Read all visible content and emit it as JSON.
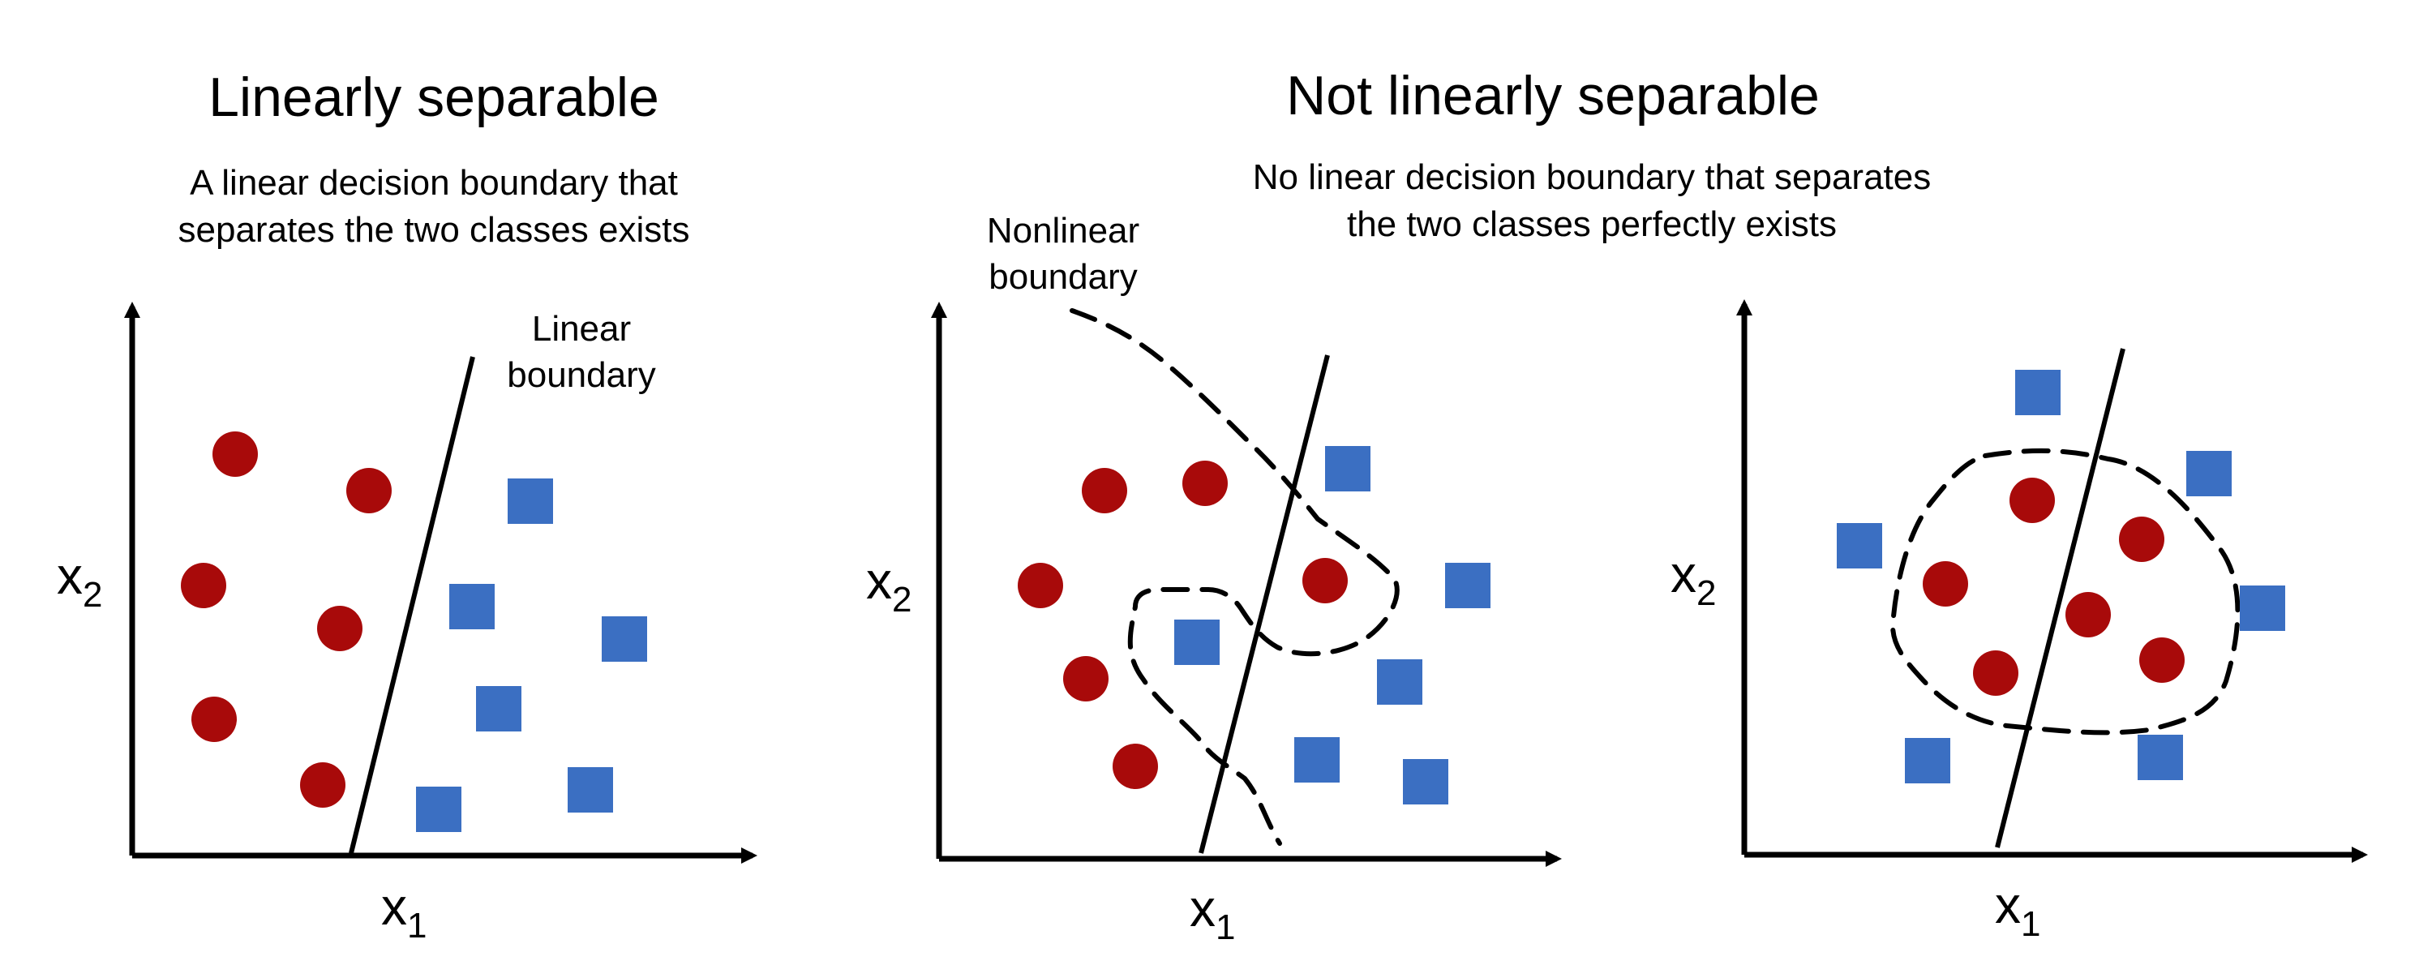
{
  "titles": {
    "left": "Linearly separable",
    "right": "Not linearly separable"
  },
  "subtitles": {
    "left": [
      "A linear decision boundary that",
      "separates the two classes exists"
    ],
    "right": [
      "No linear decision boundary that separates",
      "the two classes perfectly exists"
    ]
  },
  "annotations": {
    "linear_boundary": [
      "Linear",
      "boundary"
    ],
    "nonlinear_boundary": [
      "Nonlinear",
      "boundary"
    ]
  },
  "axes": {
    "x_label_base": "x",
    "x_label_sub": "1",
    "y_label_base": "x",
    "y_label_sub": "2"
  },
  "colors": {
    "circle": "#a80a0a",
    "square": "#3b6fc2",
    "line": "#000000"
  },
  "legend_shapes": {
    "class_a": "circle",
    "class_b": "square"
  }
}
